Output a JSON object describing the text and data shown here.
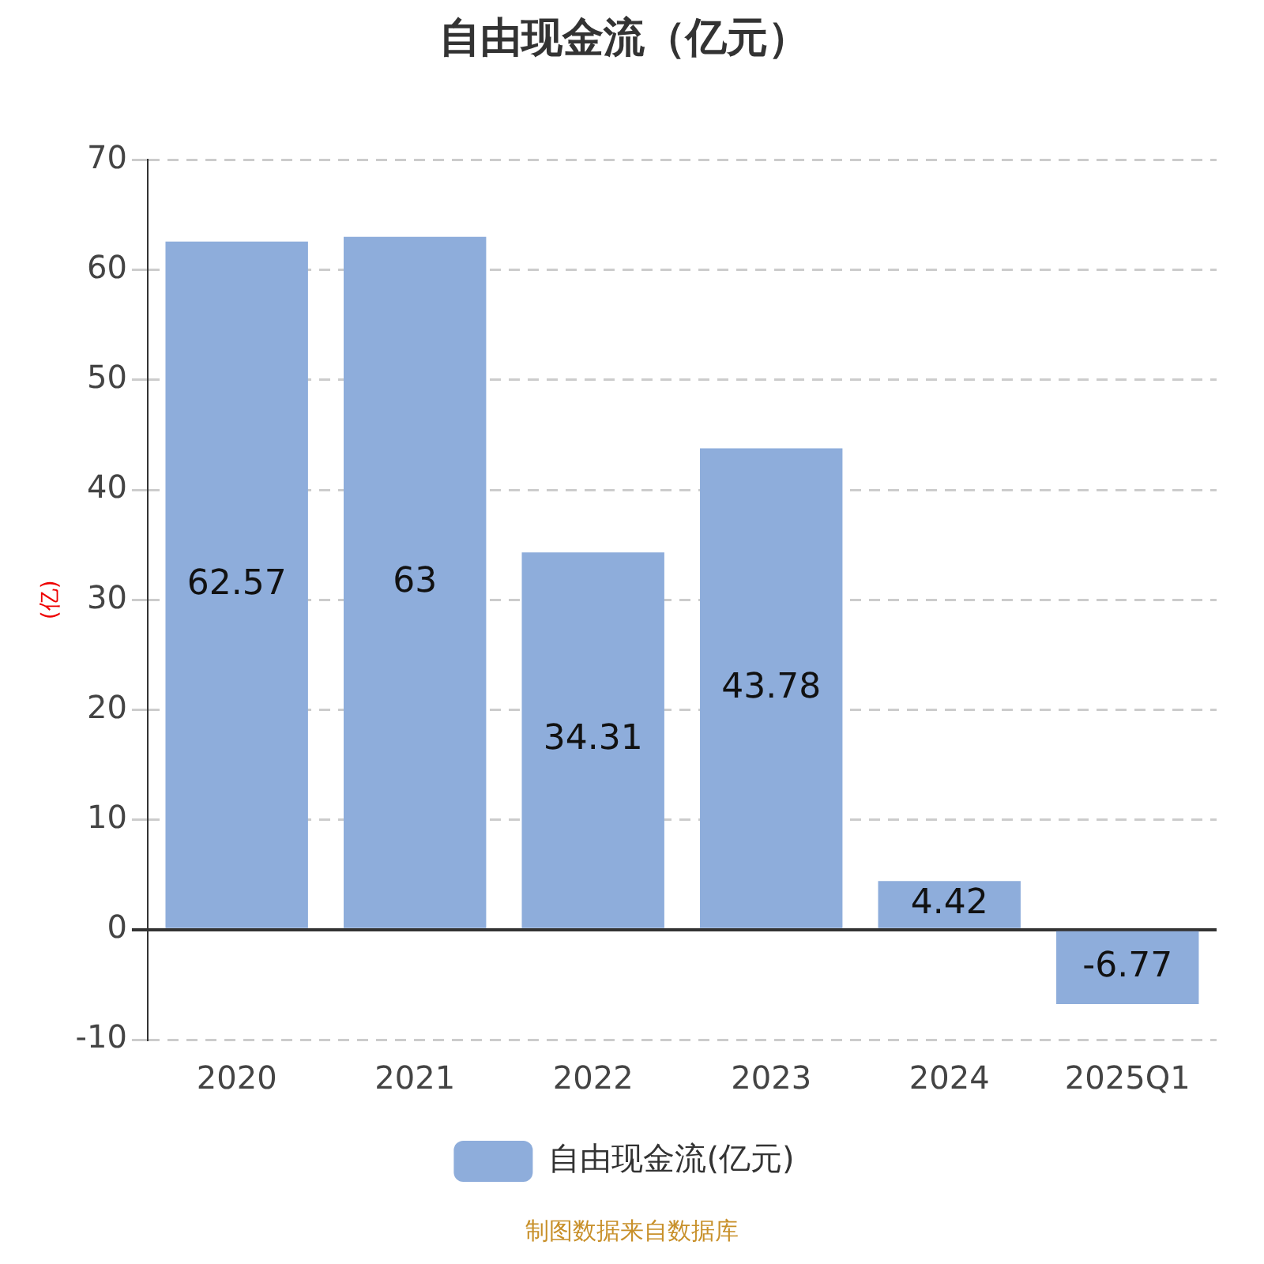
{
  "chart_data": {
    "type": "bar",
    "title": "自由现金流（亿元）",
    "ylabel": "(亿)",
    "categories": [
      "2020",
      "2021",
      "2022",
      "2023",
      "2024",
      "2025Q1"
    ],
    "series": [
      {
        "name": "自由现金流(亿元)",
        "color": "#8eaddb",
        "values": [
          62.57,
          63,
          34.31,
          43.78,
          4.42,
          -6.77
        ]
      }
    ],
    "ylim": [
      -10,
      70
    ],
    "yticks": [
      -10,
      0,
      10,
      20,
      30,
      40,
      50,
      60,
      70
    ],
    "grid": "y",
    "legend": "bottom",
    "data_labels": true,
    "annotations": [
      "制图数据来自数据库"
    ]
  }
}
